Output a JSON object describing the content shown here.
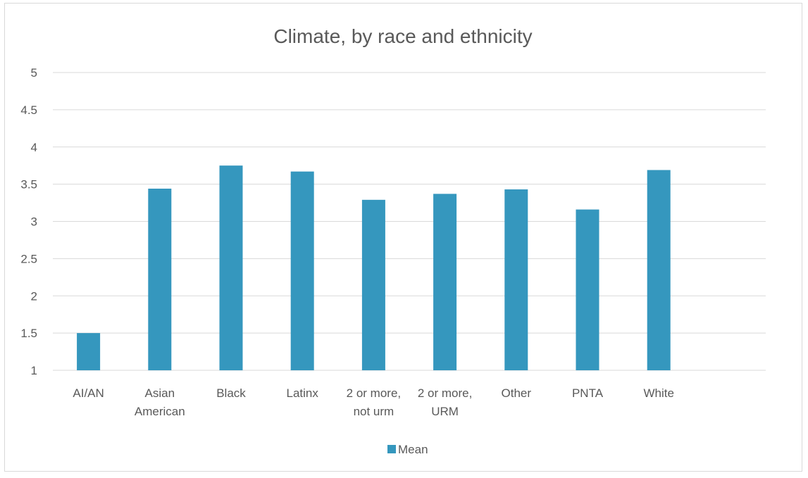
{
  "chart_data": {
    "type": "bar",
    "title": "Climate, by race and ethnicity",
    "xlabel": "",
    "ylabel": "",
    "categories": [
      [
        "AI/AN"
      ],
      [
        "Asian",
        "American"
      ],
      [
        "Black"
      ],
      [
        "Latinx"
      ],
      [
        "2 or more,",
        "not urm"
      ],
      [
        "2 or more,",
        "URM"
      ],
      [
        "Other"
      ],
      [
        "PNTA"
      ],
      [
        "White"
      ],
      [
        ""
      ]
    ],
    "series": [
      {
        "name": "Mean",
        "values": [
          1.5,
          3.44,
          3.75,
          3.67,
          3.29,
          3.37,
          3.43,
          3.16,
          3.69,
          null
        ]
      }
    ],
    "ylim": [
      1,
      5
    ],
    "yticks": [
      "1",
      "1.5",
      "2",
      "2.5",
      "3",
      "3.5",
      "4",
      "4.5",
      "5"
    ],
    "grid": true,
    "legend": "bottom",
    "colors": {
      "bar": "#3597BE",
      "grid": "#d9d9d9",
      "text": "#595959"
    }
  }
}
